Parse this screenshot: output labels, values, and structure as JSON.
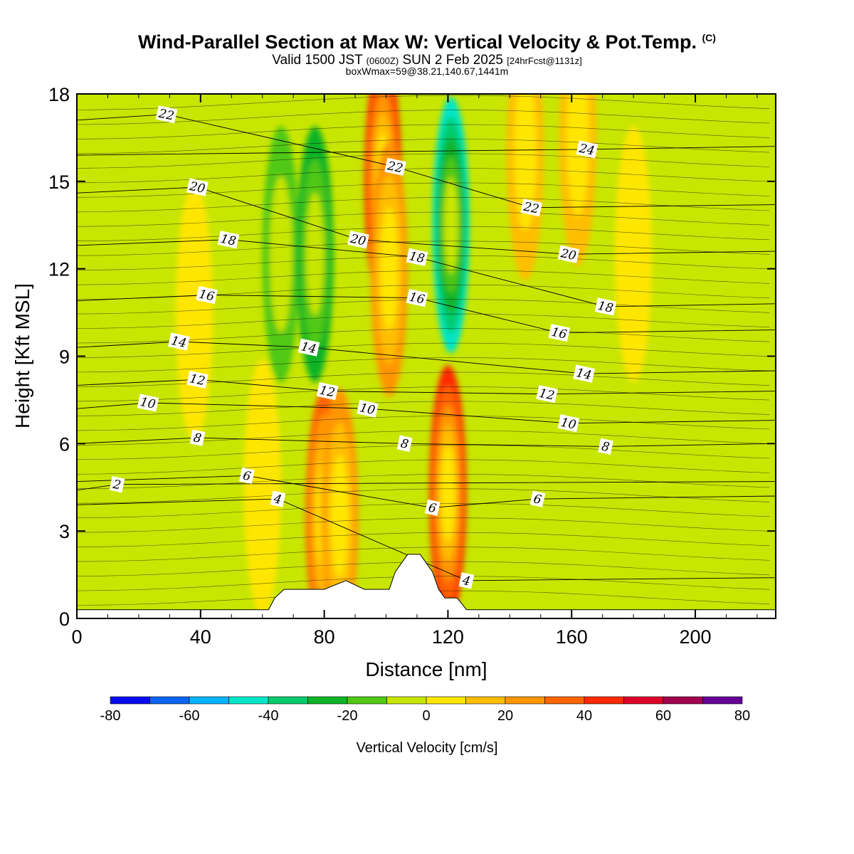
{
  "title": {
    "main": "Wind-Parallel Section at Max W: Vertical Velocity & Pot.Temp.",
    "main_mark": "(C)",
    "valid_prefix": "Valid 1500 JST",
    "valid_z": "(0600Z)",
    "valid_date": "SUN 2 Feb 2025",
    "valid_fcst": "[24hrFcst@1131z]",
    "sub": "boxWmax=59@38.21,140.67,1441m"
  },
  "chart_data": {
    "type": "contour",
    "xlabel": "Distance [nm]",
    "ylabel": "Height [Kft MSL]",
    "xlim": [
      0,
      226
    ],
    "ylim": [
      0,
      18
    ],
    "xticks": [
      "0",
      "40",
      "80",
      "120",
      "160",
      "200"
    ],
    "yticks": [
      "0",
      "3",
      "6",
      "9",
      "12",
      "15",
      "18"
    ],
    "colorbar": {
      "label": "Vertical Velocity [cm/s]",
      "ticks": [
        "-80",
        "-60",
        "-40",
        "-20",
        "0",
        "20",
        "40",
        "60",
        "80"
      ],
      "bins": [
        -80,
        -70,
        -60,
        -50,
        -40,
        -30,
        -20,
        -10,
        0,
        10,
        20,
        30,
        40,
        50,
        60,
        70,
        80
      ],
      "colors": [
        "#0a0af0",
        "#0a64f0",
        "#00b4ff",
        "#00e6c8",
        "#00cc6e",
        "#10b428",
        "#50c814",
        "#c8e600",
        "#ffe600",
        "#ffbe00",
        "#ff9600",
        "#ff6400",
        "#ff2800",
        "#dc0028",
        "#a00050",
        "#640096"
      ]
    },
    "vertical_velocity_features": [
      {
        "x": 38,
        "z": 10.5,
        "w": 10
      },
      {
        "x": 60,
        "z": 4.5,
        "w": 5
      },
      {
        "x": 66,
        "z": 12.5,
        "w": -20
      },
      {
        "x": 77,
        "z": 12.5,
        "w": -25
      },
      {
        "x": 80,
        "z": 3.5,
        "w": 35
      },
      {
        "x": 85,
        "z": 3.5,
        "w": 25
      },
      {
        "x": 99,
        "z": 15,
        "w": 45
      },
      {
        "x": 101,
        "z": 12,
        "w": 30
      },
      {
        "x": 121,
        "z": 13.5,
        "w": -45
      },
      {
        "x": 120,
        "z": 4.3,
        "w": 50
      },
      {
        "x": 145,
        "z": 16,
        "w": 20
      },
      {
        "x": 162,
        "z": 16.5,
        "w": 20
      },
      {
        "x": 180,
        "z": 12.5,
        "w": 10
      }
    ],
    "potential_temperature_labels": [
      {
        "value": "22",
        "x": 29,
        "z": 17.3
      },
      {
        "value": "20",
        "x": 39,
        "z": 14.8
      },
      {
        "value": "18",
        "x": 49,
        "z": 13.0
      },
      {
        "value": "16",
        "x": 42,
        "z": 11.1
      },
      {
        "value": "14",
        "x": 33,
        "z": 9.5
      },
      {
        "value": "12",
        "x": 39,
        "z": 8.2
      },
      {
        "value": "10",
        "x": 23,
        "z": 7.4
      },
      {
        "value": "8",
        "x": 39,
        "z": 6.2
      },
      {
        "value": "6",
        "x": 55,
        "z": 4.9
      },
      {
        "value": "4",
        "x": 65,
        "z": 4.1
      },
      {
        "value": "2",
        "x": 13,
        "z": 4.6
      },
      {
        "value": "22",
        "x": 103,
        "z": 15.5
      },
      {
        "value": "20",
        "x": 91,
        "z": 13.0
      },
      {
        "value": "18",
        "x": 110,
        "z": 12.4
      },
      {
        "value": "16",
        "x": 110,
        "z": 11.0
      },
      {
        "value": "14",
        "x": 75,
        "z": 9.3
      },
      {
        "value": "12",
        "x": 81,
        "z": 7.8
      },
      {
        "value": "10",
        "x": 94,
        "z": 7.2
      },
      {
        "value": "8",
        "x": 106,
        "z": 6.0
      },
      {
        "value": "6",
        "x": 115,
        "z": 3.8
      },
      {
        "value": "4",
        "x": 126,
        "z": 1.3
      },
      {
        "value": "24",
        "x": 165,
        "z": 16.1
      },
      {
        "value": "22",
        "x": 147,
        "z": 14.1
      },
      {
        "value": "20",
        "x": 159,
        "z": 12.5
      },
      {
        "value": "18",
        "x": 171,
        "z": 10.7
      },
      {
        "value": "16",
        "x": 156,
        "z": 9.8
      },
      {
        "value": "14",
        "x": 164,
        "z": 8.4
      },
      {
        "value": "12",
        "x": 152,
        "z": 7.7
      },
      {
        "value": "10",
        "x": 159,
        "z": 6.7
      },
      {
        "value": "8",
        "x": 171,
        "z": 5.9
      },
      {
        "value": "6",
        "x": 149,
        "z": 4.1
      }
    ],
    "terrain": [
      [
        62,
        0.3
      ],
      [
        64,
        0.7
      ],
      [
        67,
        1.0
      ],
      [
        80,
        1.0
      ],
      [
        87,
        1.3
      ],
      [
        93,
        1.0
      ],
      [
        101,
        1.0
      ],
      [
        103,
        1.6
      ],
      [
        105,
        1.9
      ],
      [
        107,
        2.2
      ],
      [
        109,
        2.2
      ],
      [
        111,
        2.2
      ],
      [
        113,
        1.9
      ],
      [
        115,
        1.6
      ],
      [
        117,
        1.0
      ],
      [
        119,
        0.7
      ],
      [
        123,
        0.7
      ],
      [
        126,
        0.3
      ],
      [
        130,
        0.3
      ]
    ]
  }
}
